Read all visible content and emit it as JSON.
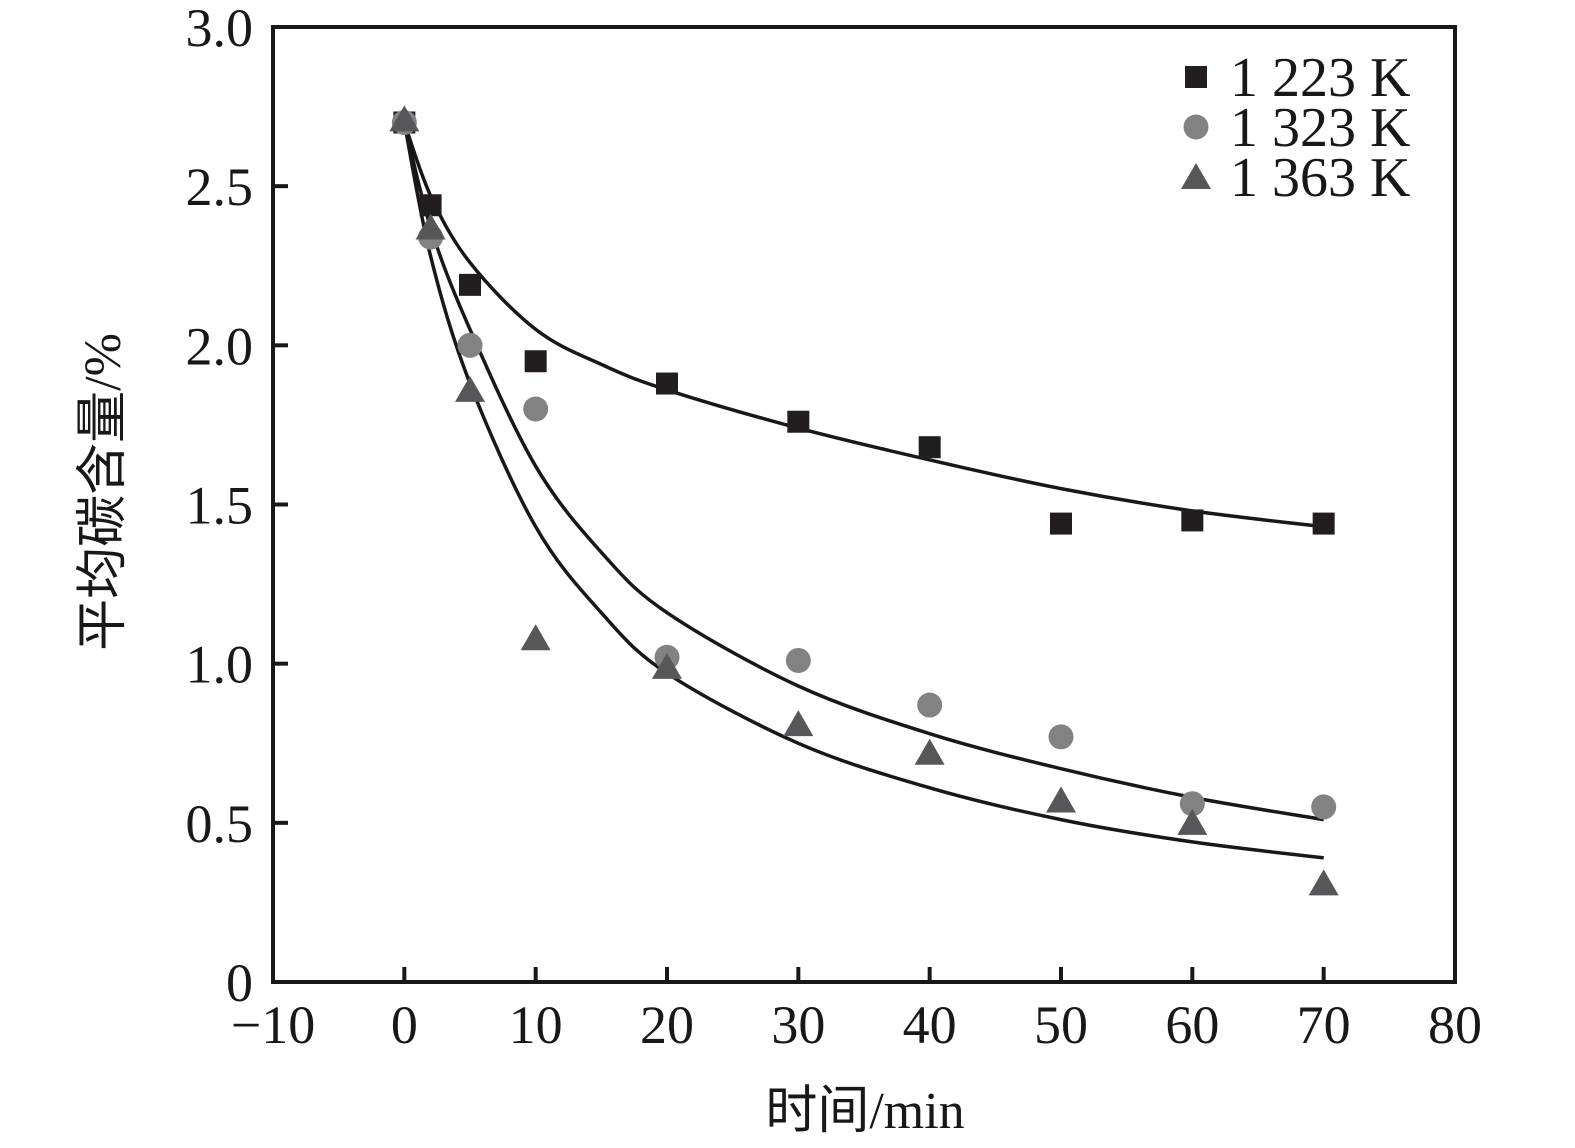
{
  "figure": {
    "background": "#ffffff",
    "axis_color": "#1a1718"
  },
  "chart_data": {
    "type": "scatter",
    "title": "",
    "xlabel": "时间/min",
    "ylabel": "平均碳含量/%",
    "xlim": [
      -10,
      80
    ],
    "ylim": [
      0,
      3.0
    ],
    "grid": false,
    "legend_position": "top-right",
    "x_ticks": [
      -10,
      0,
      10,
      20,
      30,
      40,
      50,
      60,
      70,
      80
    ],
    "x_tick_labels": [
      "−10",
      "0",
      "10",
      "20",
      "30",
      "40",
      "50",
      "60",
      "70",
      "80"
    ],
    "y_ticks": [
      0,
      0.5,
      1.0,
      1.5,
      2.0,
      2.5,
      3.0
    ],
    "y_tick_labels": [
      "0",
      "0.5",
      "1.0",
      "1.5",
      "2.0",
      "2.5",
      "3.0"
    ],
    "series": [
      {
        "id": "1223k",
        "name": "1 223 K",
        "marker": "square",
        "color": "#221e1f",
        "points": [
          [
            0,
            2.7
          ],
          [
            2,
            2.44
          ],
          [
            5,
            2.19
          ],
          [
            10,
            1.95
          ],
          [
            20,
            1.88
          ],
          [
            30,
            1.76
          ],
          [
            40,
            1.68
          ],
          [
            50,
            1.44
          ],
          [
            60,
            1.45
          ],
          [
            70,
            1.44
          ]
        ],
        "fit_curve": [
          [
            0,
            2.7
          ],
          [
            2,
            2.47
          ],
          [
            5,
            2.26
          ],
          [
            10,
            2.05
          ],
          [
            15,
            1.94
          ],
          [
            20,
            1.86
          ],
          [
            30,
            1.74
          ],
          [
            40,
            1.64
          ],
          [
            50,
            1.55
          ],
          [
            60,
            1.48
          ],
          [
            70,
            1.43
          ]
        ]
      },
      {
        "id": "1323k",
        "name": "1 323 K",
        "marker": "circle",
        "color": "#828282",
        "points": [
          [
            0,
            2.7
          ],
          [
            2,
            2.34
          ],
          [
            5,
            2.0
          ],
          [
            10,
            1.8
          ],
          [
            20,
            1.02
          ],
          [
            30,
            1.01
          ],
          [
            40,
            0.87
          ],
          [
            50,
            0.77
          ],
          [
            60,
            0.56
          ],
          [
            70,
            0.55
          ]
        ],
        "fit_curve": [
          [
            0,
            2.7
          ],
          [
            2,
            2.37
          ],
          [
            5,
            2.05
          ],
          [
            10,
            1.62
          ],
          [
            15,
            1.35
          ],
          [
            20,
            1.16
          ],
          [
            30,
            0.93
          ],
          [
            40,
            0.78
          ],
          [
            50,
            0.67
          ],
          [
            60,
            0.58
          ],
          [
            70,
            0.51
          ]
        ]
      },
      {
        "id": "1363k",
        "name": "1 363 K",
        "marker": "triangle",
        "color": "#575759",
        "points": [
          [
            0,
            2.71
          ],
          [
            2,
            2.37
          ],
          [
            5,
            1.86
          ],
          [
            10,
            1.08
          ],
          [
            20,
            0.99
          ],
          [
            30,
            0.81
          ],
          [
            40,
            0.72
          ],
          [
            50,
            0.57
          ],
          [
            60,
            0.5
          ],
          [
            70,
            0.31
          ]
        ],
        "fit_curve": [
          [
            0,
            2.7
          ],
          [
            2,
            2.28
          ],
          [
            5,
            1.88
          ],
          [
            10,
            1.43
          ],
          [
            15,
            1.16
          ],
          [
            20,
            0.97
          ],
          [
            30,
            0.75
          ],
          [
            40,
            0.61
          ],
          [
            50,
            0.51
          ],
          [
            60,
            0.44
          ],
          [
            70,
            0.39
          ]
        ]
      }
    ]
  }
}
